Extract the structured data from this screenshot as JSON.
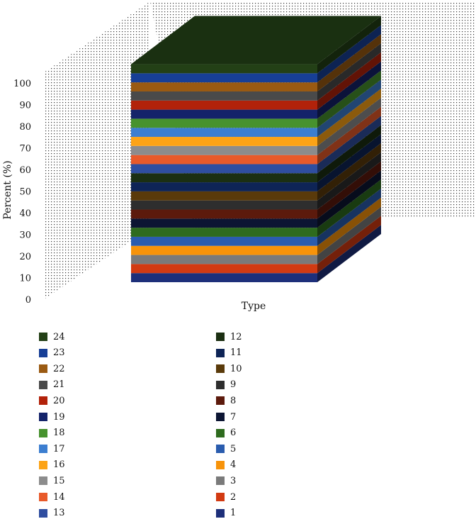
{
  "chart_data": {
    "type": "bar",
    "title": "",
    "xlabel": "Type",
    "ylabel": "Percent (%)",
    "ylim": [
      0,
      100
    ],
    "yticks": [
      0,
      10,
      20,
      30,
      40,
      50,
      60,
      70,
      80,
      90,
      100
    ],
    "stacked": true,
    "series": [
      {
        "name": "1",
        "values": [
          4.2
        ],
        "color": "#1d2f7a"
      },
      {
        "name": "2",
        "values": [
          4.2
        ],
        "color": "#d23a12"
      },
      {
        "name": "3",
        "values": [
          4.2
        ],
        "color": "#7a7a7a"
      },
      {
        "name": "4",
        "values": [
          4.2
        ],
        "color": "#f7930a"
      },
      {
        "name": "5",
        "values": [
          4.2
        ],
        "color": "#2a5cae"
      },
      {
        "name": "6",
        "values": [
          4.2
        ],
        "color": "#2e6b1e"
      },
      {
        "name": "7",
        "values": [
          4.2
        ],
        "color": "#0c1533"
      },
      {
        "name": "8",
        "values": [
          4.2
        ],
        "color": "#5c1a0c"
      },
      {
        "name": "9",
        "values": [
          4.2
        ],
        "color": "#2e2e2e"
      },
      {
        "name": "10",
        "values": [
          4.2
        ],
        "color": "#5a3a0a"
      },
      {
        "name": "11",
        "values": [
          4.2
        ],
        "color": "#0e2456"
      },
      {
        "name": "12",
        "values": [
          4.2
        ],
        "color": "#1b2f12"
      },
      {
        "name": "13",
        "values": [
          4.2
        ],
        "color": "#2f4ea0"
      },
      {
        "name": "14",
        "values": [
          4.2
        ],
        "color": "#e85a2a"
      },
      {
        "name": "15",
        "values": [
          4.2
        ],
        "color": "#8c8c8c"
      },
      {
        "name": "16",
        "values": [
          4.2
        ],
        "color": "#fca316"
      },
      {
        "name": "17",
        "values": [
          4.2
        ],
        "color": "#3c7ed0"
      },
      {
        "name": "18",
        "values": [
          4.2
        ],
        "color": "#47922e"
      },
      {
        "name": "19",
        "values": [
          4.2
        ],
        "color": "#14236a"
      },
      {
        "name": "20",
        "values": [
          4.2
        ],
        "color": "#b2220a"
      },
      {
        "name": "21",
        "values": [
          4.2
        ],
        "color": "#4a4a4a"
      },
      {
        "name": "22",
        "values": [
          4.2
        ],
        "color": "#9a5a12"
      },
      {
        "name": "23",
        "values": [
          4.2
        ],
        "color": "#173f96"
      },
      {
        "name": "24",
        "values": [
          4.2
        ],
        "color": "#234016"
      }
    ],
    "categories": [
      ""
    ],
    "legend": {
      "placement": "bottom",
      "left_column": [
        "24",
        "23",
        "22",
        "21",
        "20",
        "19",
        "18",
        "17",
        "16",
        "15",
        "14",
        "13"
      ],
      "right_column": [
        "12",
        "11",
        "10",
        "9",
        "8",
        "7",
        "6",
        "5",
        "4",
        "3",
        "2",
        "1"
      ]
    },
    "grid": true,
    "style": "3d-cube"
  }
}
